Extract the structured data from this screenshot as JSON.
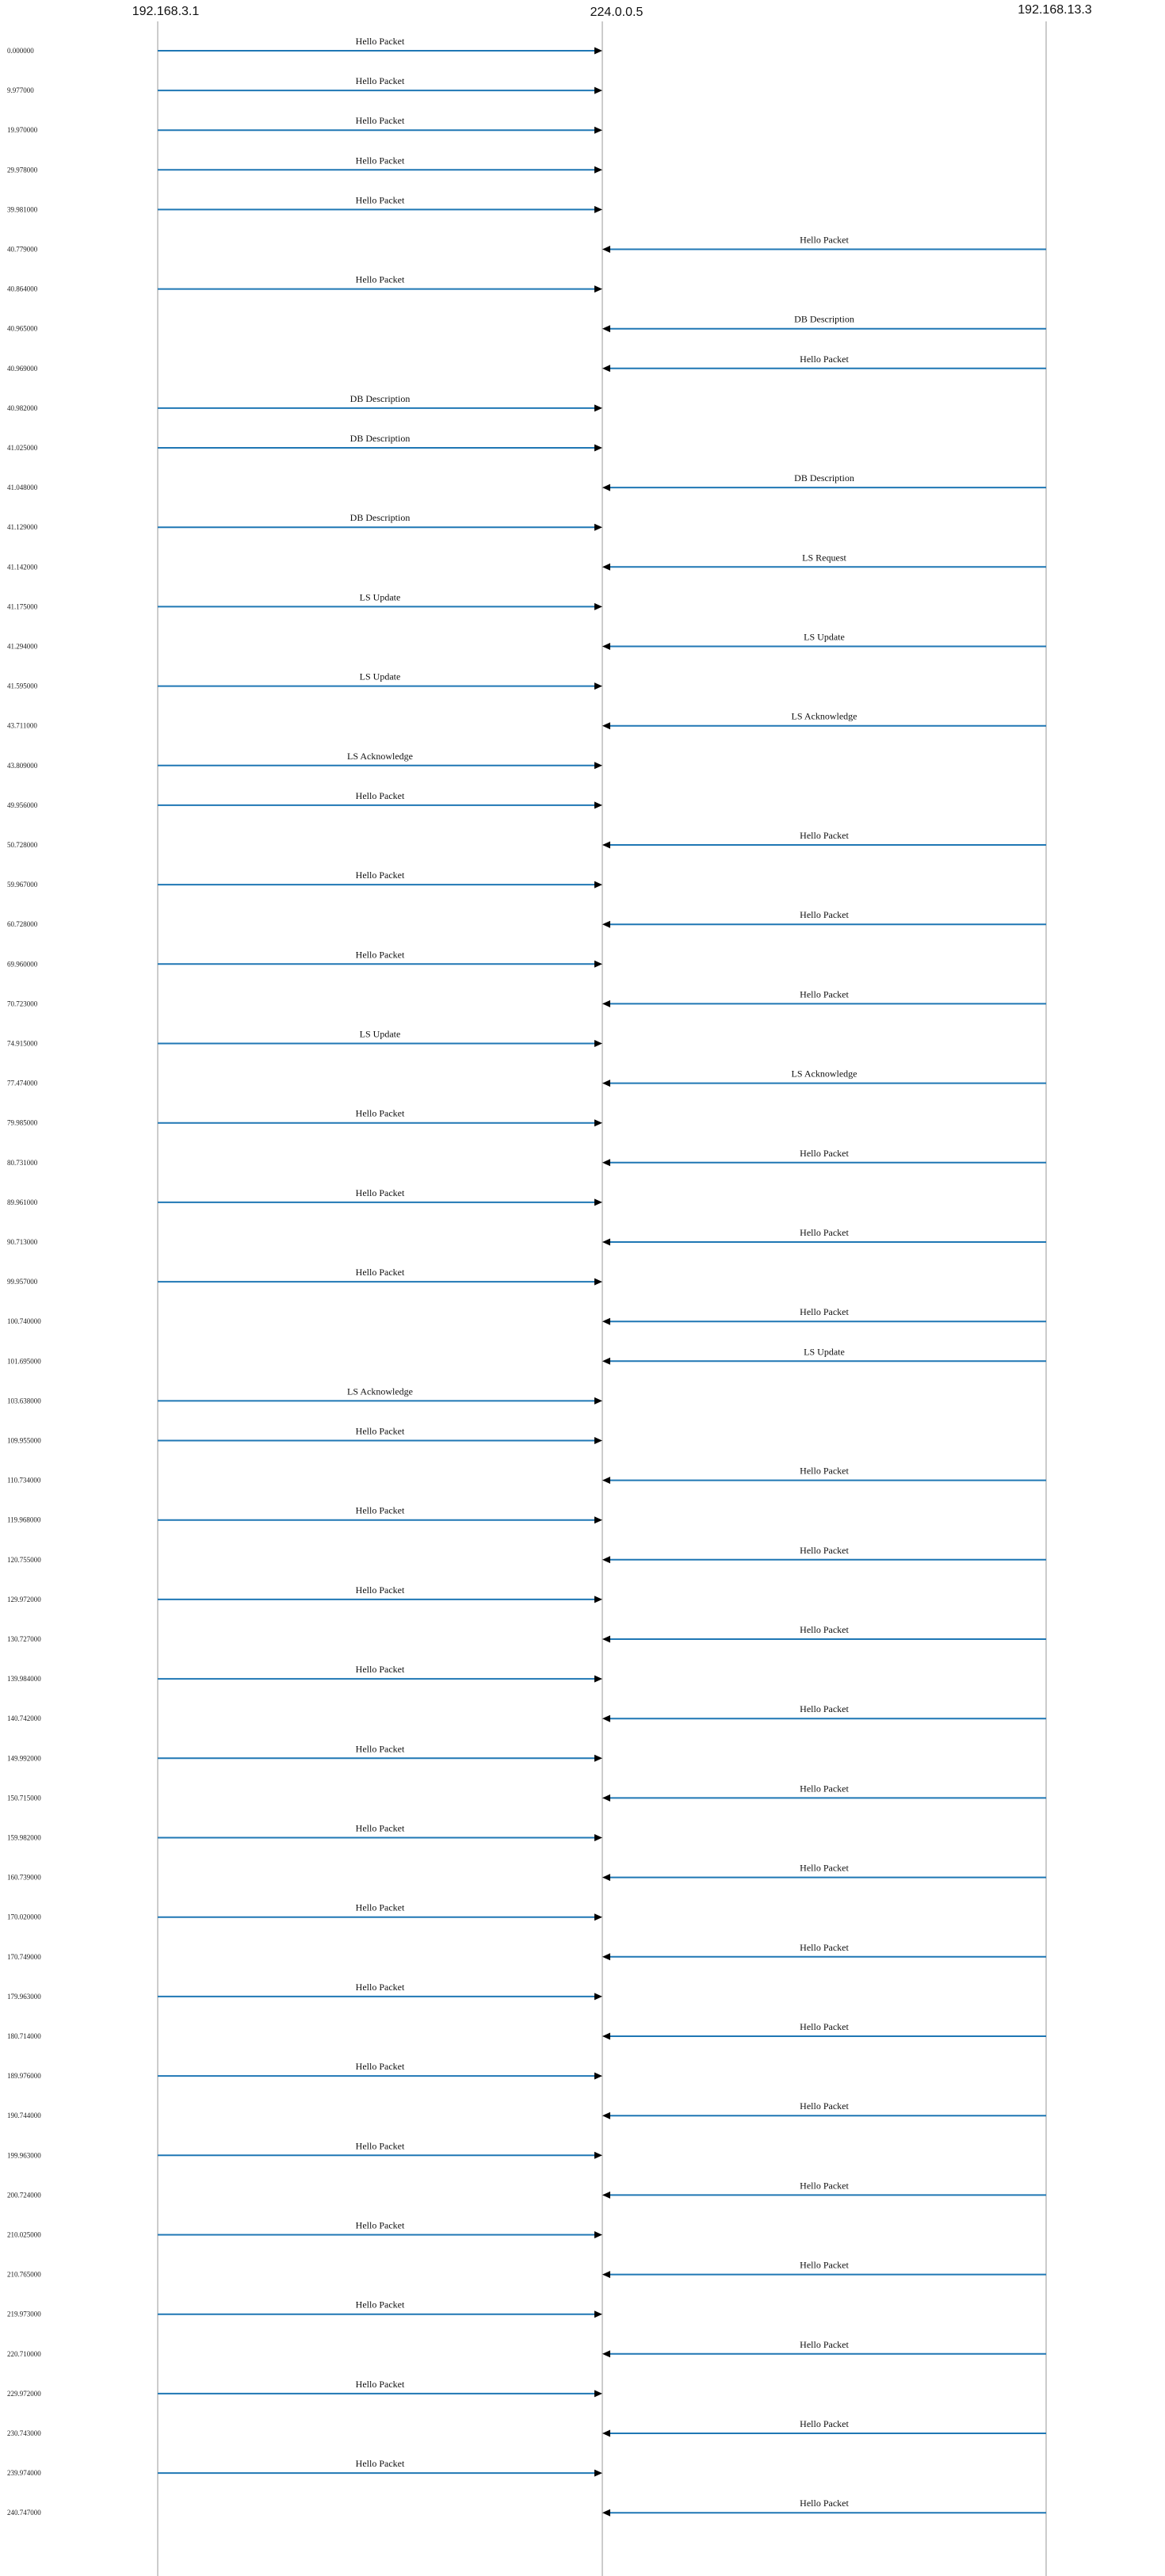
{
  "hosts": [
    "192.168.3.1",
    "224.0.0.5",
    "192.168.13.3"
  ],
  "colors": {
    "arrow": "#1f77b4",
    "arrowhead": "#000000",
    "lifeline": "#9a9a9a"
  },
  "messages": [
    {
      "time": "0.000000",
      "from": 0,
      "to": 1,
      "label": "Hello Packet"
    },
    {
      "time": "9.977000",
      "from": 0,
      "to": 1,
      "label": "Hello Packet"
    },
    {
      "time": "19.970000",
      "from": 0,
      "to": 1,
      "label": "Hello Packet"
    },
    {
      "time": "29.978000",
      "from": 0,
      "to": 1,
      "label": "Hello Packet"
    },
    {
      "time": "39.981000",
      "from": 0,
      "to": 1,
      "label": "Hello Packet"
    },
    {
      "time": "40.779000",
      "from": 2,
      "to": 1,
      "label": "Hello Packet"
    },
    {
      "time": "40.864000",
      "from": 0,
      "to": 1,
      "label": "Hello Packet"
    },
    {
      "time": "40.965000",
      "from": 2,
      "to": 1,
      "label": "DB Description"
    },
    {
      "time": "40.969000",
      "from": 2,
      "to": 1,
      "label": "Hello Packet"
    },
    {
      "time": "40.982000",
      "from": 0,
      "to": 1,
      "label": "DB Description"
    },
    {
      "time": "41.025000",
      "from": 0,
      "to": 1,
      "label": "DB Description"
    },
    {
      "time": "41.048000",
      "from": 2,
      "to": 1,
      "label": "DB Description"
    },
    {
      "time": "41.129000",
      "from": 0,
      "to": 1,
      "label": "DB Description"
    },
    {
      "time": "41.142000",
      "from": 2,
      "to": 1,
      "label": "LS Request"
    },
    {
      "time": "41.175000",
      "from": 0,
      "to": 1,
      "label": "LS Update"
    },
    {
      "time": "41.294000",
      "from": 2,
      "to": 1,
      "label": "LS Update"
    },
    {
      "time": "41.595000",
      "from": 0,
      "to": 1,
      "label": "LS Update"
    },
    {
      "time": "43.711000",
      "from": 2,
      "to": 1,
      "label": "LS Acknowledge"
    },
    {
      "time": "43.809000",
      "from": 0,
      "to": 1,
      "label": "LS Acknowledge"
    },
    {
      "time": "49.956000",
      "from": 0,
      "to": 1,
      "label": "Hello Packet"
    },
    {
      "time": "50.728000",
      "from": 2,
      "to": 1,
      "label": "Hello Packet"
    },
    {
      "time": "59.967000",
      "from": 0,
      "to": 1,
      "label": "Hello Packet"
    },
    {
      "time": "60.728000",
      "from": 2,
      "to": 1,
      "label": "Hello Packet"
    },
    {
      "time": "69.960000",
      "from": 0,
      "to": 1,
      "label": "Hello Packet"
    },
    {
      "time": "70.723000",
      "from": 2,
      "to": 1,
      "label": "Hello Packet"
    },
    {
      "time": "74.915000",
      "from": 0,
      "to": 1,
      "label": "LS Update"
    },
    {
      "time": "77.474000",
      "from": 2,
      "to": 1,
      "label": "LS Acknowledge"
    },
    {
      "time": "79.985000",
      "from": 0,
      "to": 1,
      "label": "Hello Packet"
    },
    {
      "time": "80.731000",
      "from": 2,
      "to": 1,
      "label": "Hello Packet"
    },
    {
      "time": "89.961000",
      "from": 0,
      "to": 1,
      "label": "Hello Packet"
    },
    {
      "time": "90.713000",
      "from": 2,
      "to": 1,
      "label": "Hello Packet"
    },
    {
      "time": "99.957000",
      "from": 0,
      "to": 1,
      "label": "Hello Packet"
    },
    {
      "time": "100.740000",
      "from": 2,
      "to": 1,
      "label": "Hello Packet"
    },
    {
      "time": "101.695000",
      "from": 2,
      "to": 1,
      "label": "LS Update"
    },
    {
      "time": "103.638000",
      "from": 0,
      "to": 1,
      "label": "LS Acknowledge"
    },
    {
      "time": "109.955000",
      "from": 0,
      "to": 1,
      "label": "Hello Packet"
    },
    {
      "time": "110.734000",
      "from": 2,
      "to": 1,
      "label": "Hello Packet"
    },
    {
      "time": "119.968000",
      "from": 0,
      "to": 1,
      "label": "Hello Packet"
    },
    {
      "time": "120.755000",
      "from": 2,
      "to": 1,
      "label": "Hello Packet"
    },
    {
      "time": "129.972000",
      "from": 0,
      "to": 1,
      "label": "Hello Packet"
    },
    {
      "time": "130.727000",
      "from": 2,
      "to": 1,
      "label": "Hello Packet"
    },
    {
      "time": "139.984000",
      "from": 0,
      "to": 1,
      "label": "Hello Packet"
    },
    {
      "time": "140.742000",
      "from": 2,
      "to": 1,
      "label": "Hello Packet"
    },
    {
      "time": "149.992000",
      "from": 0,
      "to": 1,
      "label": "Hello Packet"
    },
    {
      "time": "150.715000",
      "from": 2,
      "to": 1,
      "label": "Hello Packet"
    },
    {
      "time": "159.982000",
      "from": 0,
      "to": 1,
      "label": "Hello Packet"
    },
    {
      "time": "160.739000",
      "from": 2,
      "to": 1,
      "label": "Hello Packet"
    },
    {
      "time": "170.020000",
      "from": 0,
      "to": 1,
      "label": "Hello Packet"
    },
    {
      "time": "170.749000",
      "from": 2,
      "to": 1,
      "label": "Hello Packet"
    },
    {
      "time": "179.963000",
      "from": 0,
      "to": 1,
      "label": "Hello Packet"
    },
    {
      "time": "180.714000",
      "from": 2,
      "to": 1,
      "label": "Hello Packet"
    },
    {
      "time": "189.976000",
      "from": 0,
      "to": 1,
      "label": "Hello Packet"
    },
    {
      "time": "190.744000",
      "from": 2,
      "to": 1,
      "label": "Hello Packet"
    },
    {
      "time": "199.963000",
      "from": 0,
      "to": 1,
      "label": "Hello Packet"
    },
    {
      "time": "200.724000",
      "from": 2,
      "to": 1,
      "label": "Hello Packet"
    },
    {
      "time": "210.025000",
      "from": 0,
      "to": 1,
      "label": "Hello Packet"
    },
    {
      "time": "210.765000",
      "from": 2,
      "to": 1,
      "label": "Hello Packet"
    },
    {
      "time": "219.973000",
      "from": 0,
      "to": 1,
      "label": "Hello Packet"
    },
    {
      "time": "220.710000",
      "from": 2,
      "to": 1,
      "label": "Hello Packet"
    },
    {
      "time": "229.972000",
      "from": 0,
      "to": 1,
      "label": "Hello Packet"
    },
    {
      "time": "230.743000",
      "from": 2,
      "to": 1,
      "label": "Hello Packet"
    },
    {
      "time": "239.974000",
      "from": 0,
      "to": 1,
      "label": "Hello Packet"
    },
    {
      "time": "240.747000",
      "from": 2,
      "to": 1,
      "label": "Hello Packet"
    }
  ]
}
